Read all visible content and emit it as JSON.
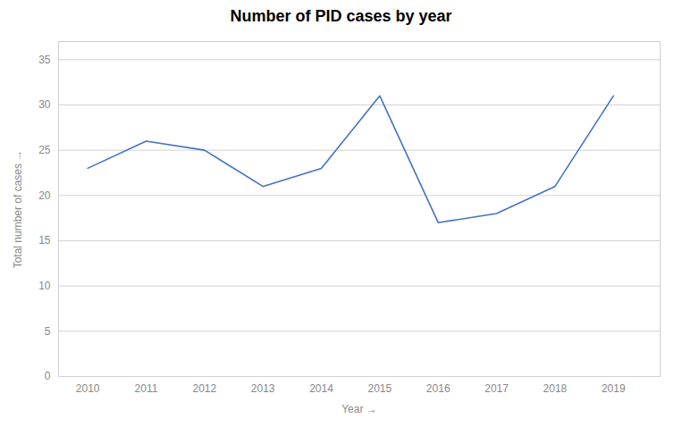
{
  "chart_data": {
    "type": "line",
    "title": "Number of PID cases by year",
    "xlabel": "Year",
    "ylabel": "Total number of cases",
    "x": [
      2010,
      2011,
      2012,
      2013,
      2014,
      2015,
      2016,
      2017,
      2018,
      2019
    ],
    "values": [
      23,
      26,
      25,
      21,
      23,
      31,
      17,
      18,
      21,
      31
    ],
    "color": "#4472C4",
    "xlim": [
      2009.5,
      2019.8
    ],
    "xticks": [
      2010,
      2011,
      2012,
      2013,
      2014,
      2015,
      2016,
      2017,
      2018,
      2019
    ],
    "ylim": [
      0,
      37
    ],
    "yticks": [
      0,
      5,
      10,
      15,
      20,
      25,
      30,
      35
    ],
    "grid": true
  }
}
